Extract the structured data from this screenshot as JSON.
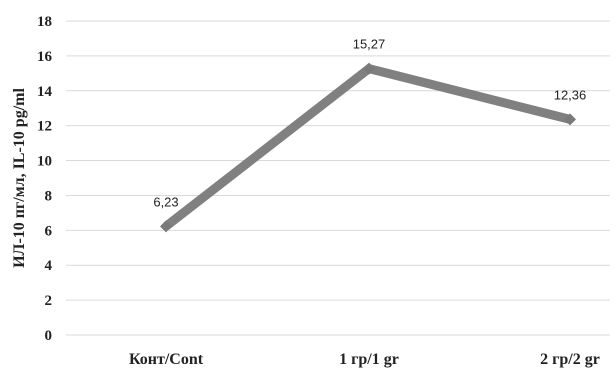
{
  "chart_data": {
    "type": "line",
    "categories": [
      "Конт/Cont",
      "1 гр/1 gr",
      "2 гр/2 gr"
    ],
    "values": [
      6.23,
      15.27,
      12.36
    ],
    "data_labels": [
      "6,23",
      "15,27",
      "12,36"
    ],
    "yticks": [
      "0",
      "2",
      "4",
      "6",
      "8",
      "10",
      "12",
      "14",
      "16",
      "18"
    ],
    "ylim": [
      0,
      18
    ],
    "ylabel": "ИЛ-10 пг/мл, IL-10 pg/ml",
    "xlabel": "",
    "title": "",
    "grid": true,
    "line_color": "#808080",
    "marker_color": "#7a7a7a"
  }
}
